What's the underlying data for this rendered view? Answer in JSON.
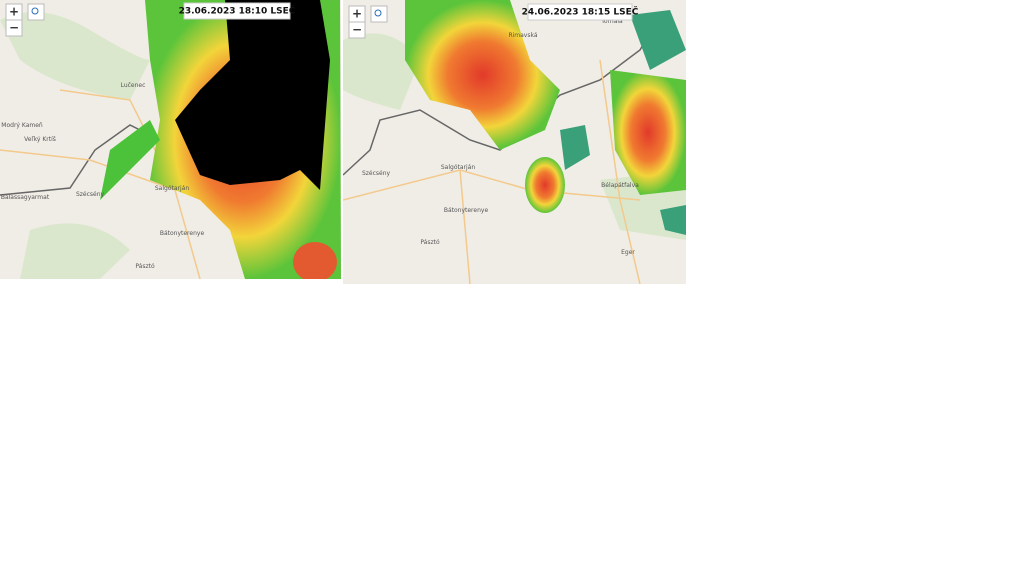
{
  "panels": [
    {
      "zoom_in": "+",
      "zoom_out": "−",
      "timestamp": "23.06.2023 18:10 LSEČ",
      "places": [
        "Lučenec",
        "Modrý Kameň",
        "Veľký Krtíš",
        "Balassagyarmat",
        "Szécsény",
        "Salgótarján",
        "Bátonyterenye",
        "Pásztó"
      ]
    },
    {
      "zoom_in": "+",
      "zoom_out": "−",
      "timestamp": "24.06.2023 18:15 LSEČ",
      "places": [
        "Rimavská",
        "Tornala",
        "Szécsény",
        "Salgótarján",
        "Bátonyterenye",
        "Pásztó",
        "Bélapátfalva",
        "Eger"
      ]
    }
  ]
}
